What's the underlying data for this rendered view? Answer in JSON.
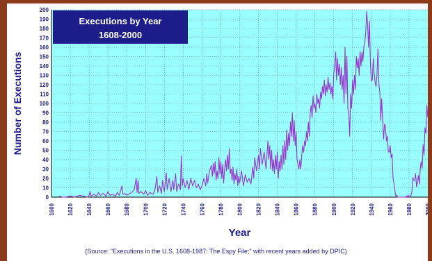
{
  "source_note": "(Source: \"Executions in the U.S. 1608-1987: The Espy File;\" with recent years added by DPIC)",
  "chart_data": {
    "type": "line",
    "title": "Executions by Year",
    "subtitle": "1608-2000",
    "xlabel": "Year",
    "ylabel": "Number of Executions",
    "xlim": [
      1600,
      2000
    ],
    "ylim": [
      0,
      200
    ],
    "x_ticks": [
      1600,
      1620,
      1640,
      1660,
      1680,
      1700,
      1720,
      1740,
      1760,
      1780,
      1800,
      1820,
      1840,
      1860,
      1880,
      1900,
      1920,
      1940,
      1960,
      1980,
      2000
    ],
    "y_ticks": [
      0,
      10,
      20,
      30,
      40,
      50,
      60,
      70,
      80,
      90,
      100,
      110,
      120,
      130,
      140,
      150,
      160,
      170,
      180,
      190,
      200
    ],
    "grid": true,
    "colors": {
      "line": "#9933cc",
      "plot_bg": "#99ffff",
      "grid": "#5577cc",
      "title_box": "#1c1c8a",
      "axis_text": "#1c1c8a"
    },
    "series": [
      {
        "name": "",
        "points": [
          [
            1608,
            1
          ],
          [
            1612,
            0
          ],
          [
            1615,
            0
          ],
          [
            1620,
            1
          ],
          [
            1625,
            0
          ],
          [
            1630,
            2
          ],
          [
            1634,
            1
          ],
          [
            1638,
            0
          ],
          [
            1640,
            2
          ],
          [
            1641,
            6
          ],
          [
            1642,
            1
          ],
          [
            1645,
            3
          ],
          [
            1648,
            1
          ],
          [
            1650,
            5
          ],
          [
            1652,
            2
          ],
          [
            1655,
            4
          ],
          [
            1658,
            1
          ],
          [
            1660,
            6
          ],
          [
            1662,
            2
          ],
          [
            1665,
            3
          ],
          [
            1668,
            1
          ],
          [
            1670,
            5
          ],
          [
            1672,
            2
          ],
          [
            1675,
            12
          ],
          [
            1676,
            3
          ],
          [
            1678,
            4
          ],
          [
            1680,
            2
          ],
          [
            1682,
            3
          ],
          [
            1685,
            5
          ],
          [
            1688,
            8
          ],
          [
            1690,
            20
          ],
          [
            1691,
            5
          ],
          [
            1692,
            18
          ],
          [
            1693,
            4
          ],
          [
            1695,
            6
          ],
          [
            1698,
            3
          ],
          [
            1700,
            7
          ],
          [
            1702,
            2
          ],
          [
            1705,
            5
          ],
          [
            1708,
            3
          ],
          [
            1710,
            8
          ],
          [
            1712,
            22
          ],
          [
            1713,
            5
          ],
          [
            1715,
            12
          ],
          [
            1717,
            4
          ],
          [
            1718,
            18
          ],
          [
            1720,
            6
          ],
          [
            1722,
            26
          ],
          [
            1723,
            8
          ],
          [
            1725,
            20
          ],
          [
            1727,
            6
          ],
          [
            1729,
            18
          ],
          [
            1730,
            8
          ],
          [
            1732,
            25
          ],
          [
            1733,
            6
          ],
          [
            1735,
            14
          ],
          [
            1737,
            8
          ],
          [
            1738,
            44
          ],
          [
            1739,
            12
          ],
          [
            1740,
            20
          ],
          [
            1742,
            10
          ],
          [
            1744,
            18
          ],
          [
            1746,
            8
          ],
          [
            1748,
            20
          ],
          [
            1750,
            12
          ],
          [
            1752,
            18
          ],
          [
            1754,
            10
          ],
          [
            1756,
            14
          ],
          [
            1758,
            8
          ],
          [
            1760,
            12
          ],
          [
            1762,
            20
          ],
          [
            1764,
            12
          ],
          [
            1765,
            25
          ],
          [
            1766,
            15
          ],
          [
            1768,
            28
          ],
          [
            1770,
            34
          ],
          [
            1771,
            22
          ],
          [
            1772,
            36
          ],
          [
            1773,
            25
          ],
          [
            1774,
            38
          ],
          [
            1775,
            18
          ],
          [
            1776,
            28
          ],
          [
            1777,
            20
          ],
          [
            1778,
            42
          ],
          [
            1779,
            25
          ],
          [
            1780,
            38
          ],
          [
            1781,
            20
          ],
          [
            1782,
            35
          ],
          [
            1783,
            15
          ],
          [
            1784,
            30
          ],
          [
            1785,
            40
          ],
          [
            1786,
            28
          ],
          [
            1787,
            45
          ],
          [
            1788,
            30
          ],
          [
            1789,
            52
          ],
          [
            1790,
            25
          ],
          [
            1791,
            30
          ],
          [
            1792,
            18
          ],
          [
            1793,
            32
          ],
          [
            1794,
            14
          ],
          [
            1795,
            25
          ],
          [
            1796,
            18
          ],
          [
            1797,
            30
          ],
          [
            1798,
            12
          ],
          [
            1799,
            22
          ],
          [
            1800,
            15
          ],
          [
            1802,
            28
          ],
          [
            1804,
            12
          ],
          [
            1806,
            24
          ],
          [
            1808,
            16
          ],
          [
            1810,
            20
          ],
          [
            1812,
            14
          ],
          [
            1814,
            32
          ],
          [
            1815,
            20
          ],
          [
            1816,
            42
          ],
          [
            1818,
            28
          ],
          [
            1820,
            45
          ],
          [
            1821,
            30
          ],
          [
            1822,
            52
          ],
          [
            1824,
            35
          ],
          [
            1826,
            48
          ],
          [
            1828,
            30
          ],
          [
            1830,
            60
          ],
          [
            1831,
            40
          ],
          [
            1832,
            55
          ],
          [
            1833,
            30
          ],
          [
            1834,
            50
          ],
          [
            1835,
            28
          ],
          [
            1836,
            40
          ],
          [
            1837,
            25
          ],
          [
            1838,
            45
          ],
          [
            1839,
            30
          ],
          [
            1840,
            48
          ],
          [
            1841,
            20
          ],
          [
            1842,
            38
          ],
          [
            1843,
            28
          ],
          [
            1844,
            45
          ],
          [
            1845,
            30
          ],
          [
            1846,
            55
          ],
          [
            1847,
            35
          ],
          [
            1848,
            60
          ],
          [
            1849,
            40
          ],
          [
            1850,
            72
          ],
          [
            1851,
            50
          ],
          [
            1852,
            68
          ],
          [
            1853,
            55
          ],
          [
            1854,
            80
          ],
          [
            1855,
            65
          ],
          [
            1856,
            90
          ],
          [
            1857,
            60
          ],
          [
            1858,
            82
          ],
          [
            1859,
            55
          ],
          [
            1860,
            70
          ],
          [
            1861,
            40
          ],
          [
            1862,
            35
          ],
          [
            1863,
            30
          ],
          [
            1864,
            40
          ],
          [
            1865,
            30
          ],
          [
            1866,
            45
          ],
          [
            1867,
            55
          ],
          [
            1868,
            48
          ],
          [
            1869,
            60
          ],
          [
            1870,
            55
          ],
          [
            1871,
            70
          ],
          [
            1872,
            60
          ],
          [
            1873,
            80
          ],
          [
            1874,
            65
          ],
          [
            1875,
            90
          ],
          [
            1876,
            98
          ],
          [
            1877,
            85
          ],
          [
            1878,
            108
          ],
          [
            1879,
            95
          ],
          [
            1880,
            100
          ],
          [
            1881,
            90
          ],
          [
            1882,
            110
          ],
          [
            1883,
            100
          ],
          [
            1884,
            105
          ],
          [
            1885,
            95
          ],
          [
            1886,
            112
          ],
          [
            1887,
            105
          ],
          [
            1888,
            118
          ],
          [
            1889,
            110
          ],
          [
            1890,
            125
          ],
          [
            1891,
            108
          ],
          [
            1892,
            120
          ],
          [
            1893,
            112
          ],
          [
            1894,
            128
          ],
          [
            1895,
            115
          ],
          [
            1896,
            122
          ],
          [
            1897,
            110
          ],
          [
            1898,
            118
          ],
          [
            1899,
            105
          ],
          [
            1900,
            132
          ],
          [
            1901,
            140
          ],
          [
            1902,
            155
          ],
          [
            1903,
            125
          ],
          [
            1904,
            148
          ],
          [
            1905,
            130
          ],
          [
            1906,
            142
          ],
          [
            1907,
            120
          ],
          [
            1908,
            138
          ],
          [
            1909,
            115
          ],
          [
            1910,
            130
          ],
          [
            1911,
            100
          ],
          [
            1912,
            160
          ],
          [
            1913,
            110
          ],
          [
            1914,
            150
          ],
          [
            1915,
            95
          ],
          [
            1916,
            90
          ],
          [
            1917,
            65
          ],
          [
            1918,
            110
          ],
          [
            1919,
            95
          ],
          [
            1920,
            125
          ],
          [
            1921,
            110
          ],
          [
            1922,
            130
          ],
          [
            1923,
            115
          ],
          [
            1924,
            150
          ],
          [
            1925,
            138
          ],
          [
            1926,
            148
          ],
          [
            1927,
            130
          ],
          [
            1928,
            155
          ],
          [
            1929,
            140
          ],
          [
            1930,
            155
          ],
          [
            1931,
            145
          ],
          [
            1932,
            160
          ],
          [
            1933,
            165
          ],
          [
            1934,
            175
          ],
          [
            1935,
            198
          ],
          [
            1936,
            185
          ],
          [
            1937,
            160
          ],
          [
            1938,
            188
          ],
          [
            1939,
            142
          ],
          [
            1940,
            124
          ],
          [
            1941,
            125
          ],
          [
            1942,
            148
          ],
          [
            1943,
            132
          ],
          [
            1944,
            122
          ],
          [
            1945,
            118
          ],
          [
            1946,
            132
          ],
          [
            1947,
            158
          ],
          [
            1948,
            120
          ],
          [
            1949,
            112
          ],
          [
            1950,
            82
          ],
          [
            1951,
            105
          ],
          [
            1952,
            82
          ],
          [
            1953,
            62
          ],
          [
            1954,
            78
          ],
          [
            1955,
            75
          ],
          [
            1956,
            60
          ],
          [
            1957,
            65
          ],
          [
            1958,
            48
          ],
          [
            1959,
            48
          ],
          [
            1960,
            55
          ],
          [
            1961,
            42
          ],
          [
            1962,
            46
          ],
          [
            1963,
            20
          ],
          [
            1964,
            15
          ],
          [
            1965,
            7
          ],
          [
            1966,
            1
          ],
          [
            1967,
            2
          ],
          [
            1968,
            0
          ],
          [
            1972,
            0
          ],
          [
            1976,
            0
          ],
          [
            1977,
            1
          ],
          [
            1978,
            0
          ],
          [
            1979,
            2
          ],
          [
            1980,
            0
          ],
          [
            1981,
            1
          ],
          [
            1982,
            2
          ],
          [
            1983,
            5
          ],
          [
            1984,
            21
          ],
          [
            1985,
            18
          ],
          [
            1986,
            18
          ],
          [
            1987,
            25
          ],
          [
            1988,
            11
          ],
          [
            1989,
            16
          ],
          [
            1990,
            23
          ],
          [
            1991,
            14
          ],
          [
            1992,
            31
          ],
          [
            1993,
            38
          ],
          [
            1994,
            31
          ],
          [
            1995,
            56
          ],
          [
            1996,
            45
          ],
          [
            1997,
            74
          ],
          [
            1998,
            68
          ],
          [
            1999,
            98
          ],
          [
            2000,
            85
          ]
        ]
      }
    ]
  }
}
